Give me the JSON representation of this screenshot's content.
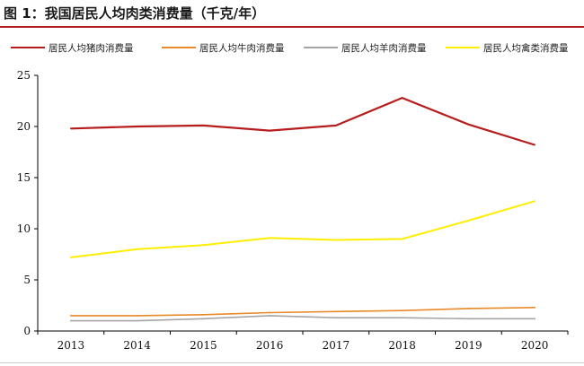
{
  "figure": {
    "title": "图 1：我国居民人均肉类消费量（千克/年）"
  },
  "chart_data": {
    "type": "line",
    "categories": [
      "2013",
      "2014",
      "2015",
      "2016",
      "2017",
      "2018",
      "2019",
      "2020"
    ],
    "ylim": [
      0,
      25
    ],
    "yticks": [
      0,
      5,
      10,
      15,
      20,
      25
    ],
    "grid": false,
    "legend_position": "top",
    "series": [
      {
        "name": "居民人均猪肉消费量",
        "color": "#b71c1c",
        "values": [
          19.8,
          20.0,
          20.1,
          19.6,
          20.1,
          22.8,
          20.2,
          18.2
        ]
      },
      {
        "name": "居民人均牛肉消费量",
        "color": "#e8892a",
        "values": [
          1.5,
          1.5,
          1.6,
          1.8,
          1.9,
          2.0,
          2.2,
          2.3
        ]
      },
      {
        "name": "居民人均羊肉消费量",
        "color": "#a5a5a5",
        "values": [
          1.0,
          1.0,
          1.2,
          1.5,
          1.3,
          1.3,
          1.2,
          1.2
        ]
      },
      {
        "name": "居民人均禽类消费量",
        "color": "#ffee00",
        "values": [
          7.2,
          8.0,
          8.4,
          9.1,
          8.9,
          9.0,
          10.8,
          12.7
        ]
      }
    ]
  }
}
